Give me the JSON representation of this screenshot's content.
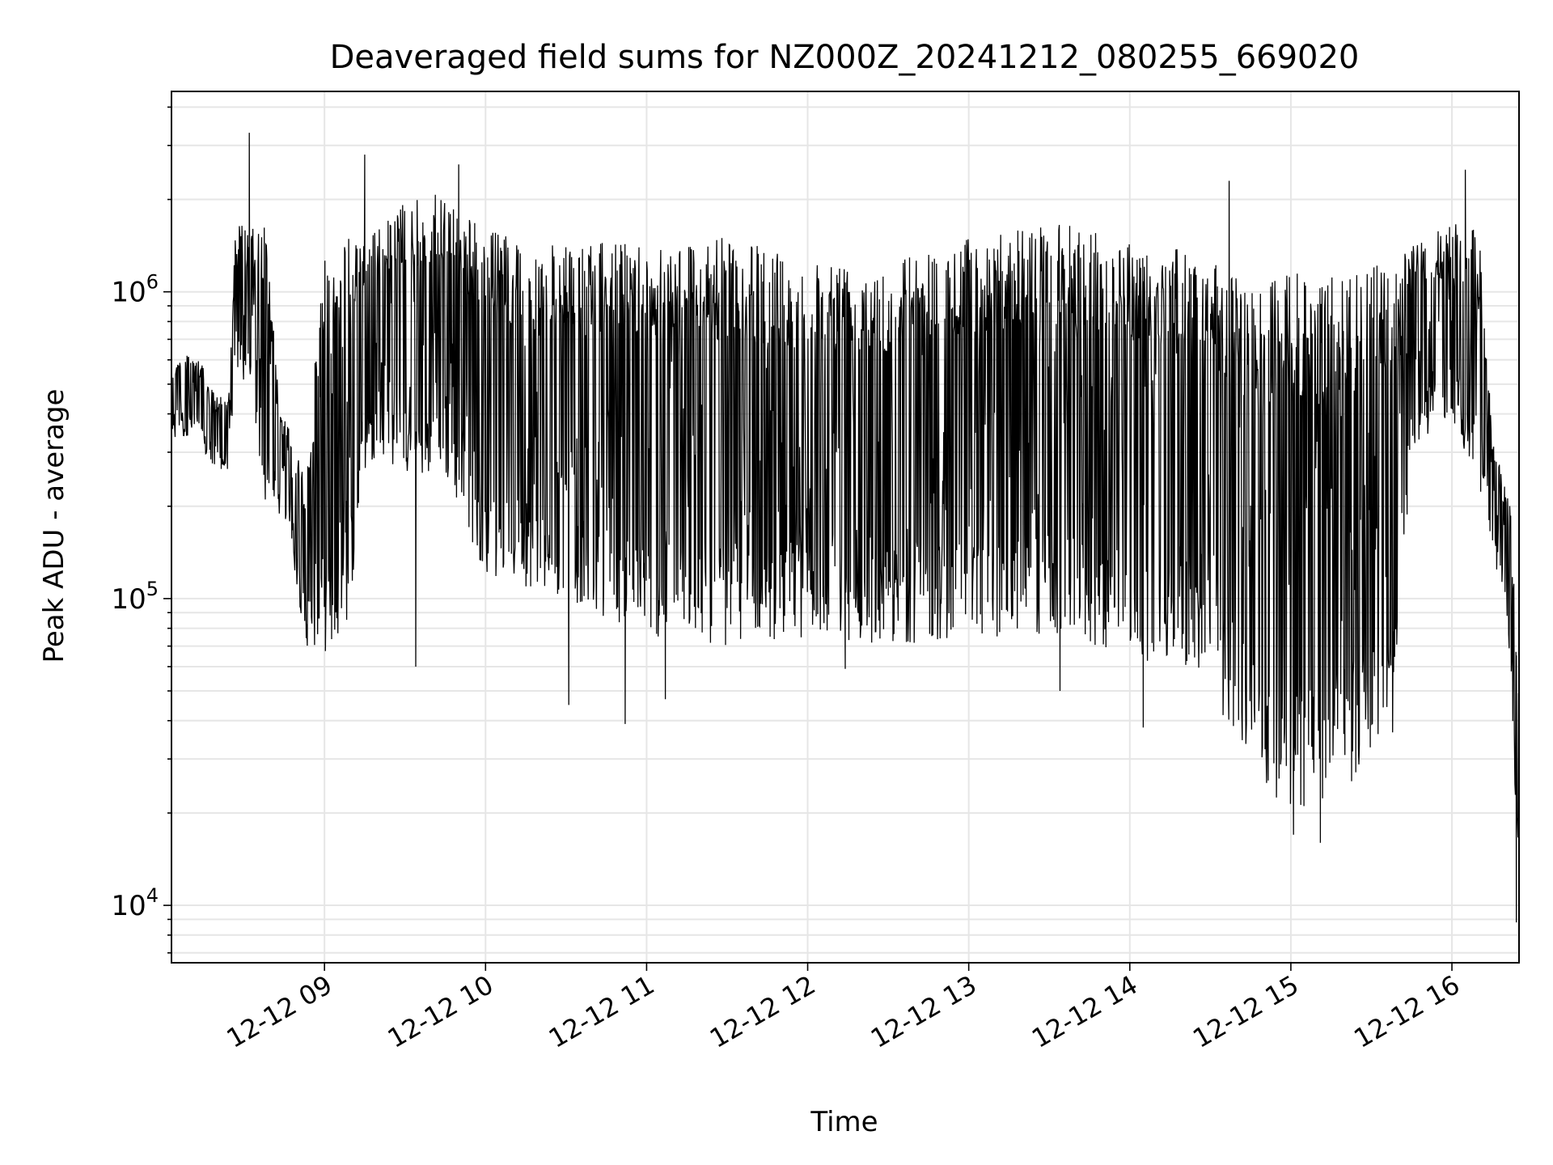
{
  "chart_data": {
    "type": "line",
    "title": "Deaveraged field sums for NZ000Z_20241212_080255_669020",
    "xlabel": "Time",
    "ylabel": "Peak ADU - average",
    "yscale": "log",
    "grid": true,
    "line_color": "#000000",
    "xlim": [
      "2024-12-12T08:03:00",
      "2024-12-12T16:25:00"
    ],
    "ylim": [
      6500,
      4500000
    ],
    "x_ticks": [
      {
        "t": "2024-12-12T09:00:00",
        "label": "12-12 09"
      },
      {
        "t": "2024-12-12T10:00:00",
        "label": "12-12 10"
      },
      {
        "t": "2024-12-12T11:00:00",
        "label": "12-12 11"
      },
      {
        "t": "2024-12-12T12:00:00",
        "label": "12-12 12"
      },
      {
        "t": "2024-12-12T13:00:00",
        "label": "12-12 13"
      },
      {
        "t": "2024-12-12T14:00:00",
        "label": "12-12 14"
      },
      {
        "t": "2024-12-12T15:00:00",
        "label": "12-12 15"
      },
      {
        "t": "2024-12-12T16:00:00",
        "label": "12-12 16"
      }
    ],
    "y_ticks": [
      {
        "v": 10000,
        "base": "10",
        "exp": "4"
      },
      {
        "v": 100000,
        "base": "10",
        "exp": "5"
      },
      {
        "v": 1000000,
        "base": "10",
        "exp": "6"
      }
    ],
    "series": [
      {
        "name": "",
        "envelope": [
          {
            "t": "2024-12-12T08:03:00",
            "lo": 320000,
            "hi": 600000
          },
          {
            "t": "2024-12-12T08:12:00",
            "lo": 350000,
            "hi": 650000
          },
          {
            "t": "2024-12-12T08:18:00",
            "lo": 260000,
            "hi": 480000
          },
          {
            "t": "2024-12-12T08:24:00",
            "lo": 260000,
            "hi": 450000
          },
          {
            "t": "2024-12-12T08:27:00",
            "lo": 550000,
            "hi": 1700000
          },
          {
            "t": "2024-12-12T08:33:00",
            "lo": 450000,
            "hi": 1600000
          },
          {
            "t": "2024-12-12T08:38:00",
            "lo": 200000,
            "hi": 1700000
          },
          {
            "t": "2024-12-12T08:43:00",
            "lo": 190000,
            "hi": 450000
          },
          {
            "t": "2024-12-12T08:48:00",
            "lo": 140000,
            "hi": 330000
          },
          {
            "t": "2024-12-12T08:53:00",
            "lo": 70000,
            "hi": 250000
          },
          {
            "t": "2024-12-12T09:00:00",
            "lo": 65000,
            "hi": 1400000
          },
          {
            "t": "2024-12-12T09:08:00",
            "lo": 65000,
            "hi": 1500000
          },
          {
            "t": "2024-12-12T09:14:00",
            "lo": 250000,
            "hi": 1600000
          },
          {
            "t": "2024-12-12T09:20:00",
            "lo": 300000,
            "hi": 1600000
          },
          {
            "t": "2024-12-12T09:30:00",
            "lo": 250000,
            "hi": 2000000
          },
          {
            "t": "2024-12-12T09:45:00",
            "lo": 250000,
            "hi": 2100000
          },
          {
            "t": "2024-12-12T10:00:00",
            "lo": 120000,
            "hi": 1600000
          },
          {
            "t": "2024-12-12T10:30:00",
            "lo": 100000,
            "hi": 1400000
          },
          {
            "t": "2024-12-12T11:00:00",
            "lo": 75000,
            "hi": 1500000
          },
          {
            "t": "2024-12-12T11:30:00",
            "lo": 70000,
            "hi": 1500000
          },
          {
            "t": "2024-12-12T12:00:00",
            "lo": 75000,
            "hi": 1300000
          },
          {
            "t": "2024-12-12T12:30:00",
            "lo": 70000,
            "hi": 1300000
          },
          {
            "t": "2024-12-12T13:00:00",
            "lo": 75000,
            "hi": 1500000
          },
          {
            "t": "2024-12-12T13:30:00",
            "lo": 75000,
            "hi": 1700000
          },
          {
            "t": "2024-12-12T14:00:00",
            "lo": 65000,
            "hi": 1500000
          },
          {
            "t": "2024-12-12T14:30:00",
            "lo": 55000,
            "hi": 1300000
          },
          {
            "t": "2024-12-12T14:40:00",
            "lo": 30000,
            "hi": 1100000
          },
          {
            "t": "2024-12-12T15:00:00",
            "lo": 20000,
            "hi": 1150000
          },
          {
            "t": "2024-12-12T15:15:00",
            "lo": 22000,
            "hi": 1150000
          },
          {
            "t": "2024-12-12T15:30:00",
            "lo": 28000,
            "hi": 1200000
          },
          {
            "t": "2024-12-12T15:40:00",
            "lo": 35000,
            "hi": 1300000
          },
          {
            "t": "2024-12-12T15:45:00",
            "lo": 300000,
            "hi": 1400000
          },
          {
            "t": "2024-12-12T16:00:00",
            "lo": 400000,
            "hi": 1700000
          },
          {
            "t": "2024-12-12T16:10:00",
            "lo": 200000,
            "hi": 1600000
          },
          {
            "t": "2024-12-12T16:15:00",
            "lo": 150000,
            "hi": 350000
          },
          {
            "t": "2024-12-12T16:22:00",
            "lo": 60000,
            "hi": 200000
          },
          {
            "t": "2024-12-12T16:25:00",
            "lo": 9000,
            "hi": 50000
          }
        ],
        "spikes": [
          {
            "t": "2024-12-12T08:32:00",
            "v": 3300000
          },
          {
            "t": "2024-12-12T09:15:00",
            "v": 2800000
          },
          {
            "t": "2024-12-12T09:34:00",
            "v": 60000
          },
          {
            "t": "2024-12-12T09:50:00",
            "v": 2600000
          },
          {
            "t": "2024-12-12T10:31:00",
            "v": 45000
          },
          {
            "t": "2024-12-12T10:52:00",
            "v": 39000
          },
          {
            "t": "2024-12-12T11:07:00",
            "v": 47000
          },
          {
            "t": "2024-12-12T12:14:00",
            "v": 59000
          },
          {
            "t": "2024-12-12T13:34:00",
            "v": 50000
          },
          {
            "t": "2024-12-12T14:05:00",
            "v": 38000
          },
          {
            "t": "2024-12-12T14:37:00",
            "v": 2300000
          },
          {
            "t": "2024-12-12T15:01:00",
            "v": 17000
          },
          {
            "t": "2024-12-12T15:11:00",
            "v": 16000
          },
          {
            "t": "2024-12-12T16:05:00",
            "v": 2500000
          },
          {
            "t": "2024-12-12T16:24:00",
            "v": 8800
          }
        ]
      }
    ]
  }
}
